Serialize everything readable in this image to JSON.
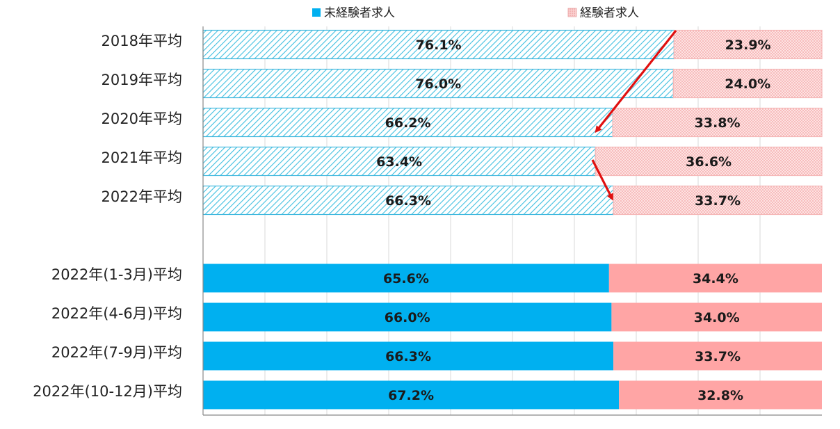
{
  "chart_data": {
    "type": "bar",
    "orientation": "horizontal",
    "stacked": "percent",
    "title": "",
    "xlabel": "",
    "ylabel": "",
    "xlim": [
      0,
      100
    ],
    "grid": true,
    "legend_position": "top",
    "categories": [
      "2018年平均",
      "2019年平均",
      "2020年平均",
      "2021年平均",
      "2022年平均",
      "2022年(1-3月)平均",
      "2022年(4-6月)平均",
      "2022年(7-9月)平均",
      "2022年(10-12月)平均"
    ],
    "series": [
      {
        "name": "未経験者求人",
        "color": "#00b0f0",
        "values": [
          76.1,
          76.0,
          66.2,
          63.4,
          66.3,
          65.6,
          66.0,
          66.3,
          67.2
        ],
        "labels": [
          "76.1%",
          "76.0%",
          "66.2%",
          "63.4%",
          "66.3%",
          "65.6%",
          "66.0%",
          "66.3%",
          "67.2%"
        ]
      },
      {
        "name": "経験者求人",
        "color": "#ffa5a5",
        "values": [
          23.9,
          24.0,
          33.8,
          36.6,
          33.7,
          34.4,
          34.0,
          33.7,
          32.8
        ],
        "labels": [
          "23.9%",
          "24.0%",
          "33.8%",
          "36.6%",
          "33.7%",
          "34.4%",
          "34.0%",
          "33.7%",
          "32.8%"
        ]
      }
    ],
    "hatched_categories": [
      0,
      1,
      2,
      3,
      4
    ],
    "annotations": [
      {
        "type": "arrow",
        "color": "#e01010",
        "from_category": 0,
        "to_category": 2,
        "from_value": 76.1,
        "to_value": 63.4
      },
      {
        "type": "arrow",
        "color": "#e01010",
        "from_category": 3,
        "to_category": 4,
        "from_value": 63.4,
        "to_value": 66.3
      }
    ]
  }
}
